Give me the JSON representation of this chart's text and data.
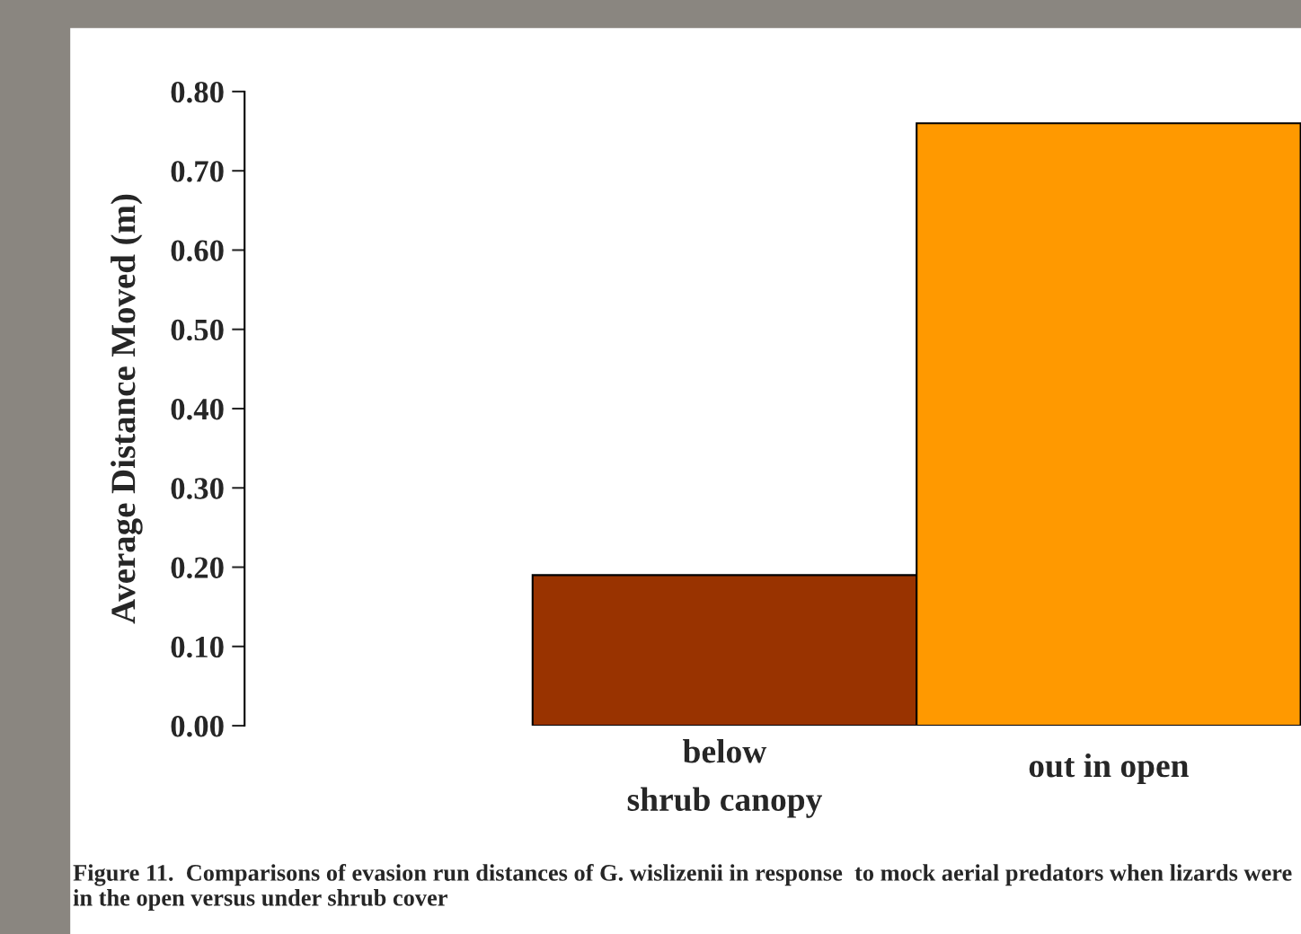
{
  "chart_data": {
    "type": "bar",
    "ylabel": "Average Distance Moved (m)",
    "categories": [
      "below\nshrub canopy",
      "out in open"
    ],
    "values": [
      0.19,
      0.76
    ],
    "colors": [
      "#993300",
      "#ff9900"
    ],
    "ylim": [
      0,
      0.8
    ],
    "yticks": [
      {
        "value": 0,
        "label": "0.00"
      },
      {
        "value": 0.1,
        "label": "0.10"
      },
      {
        "value": 0.2,
        "label": "0.20"
      },
      {
        "value": 0.3,
        "label": "0.30"
      },
      {
        "value": 0.4,
        "label": "0.40"
      },
      {
        "value": 0.5,
        "label": "0.50"
      },
      {
        "value": 0.6,
        "label": "0.60"
      },
      {
        "value": 0.7,
        "label": "0.70"
      },
      {
        "value": 0.8,
        "label": "0.80"
      }
    ],
    "grid": false,
    "annotations": [
      "Figure 11.  Comparisons of evasion run distances of G. wislizenii in response  to mock aerial predators when lizards were in the open versus under shrub cover"
    ]
  }
}
